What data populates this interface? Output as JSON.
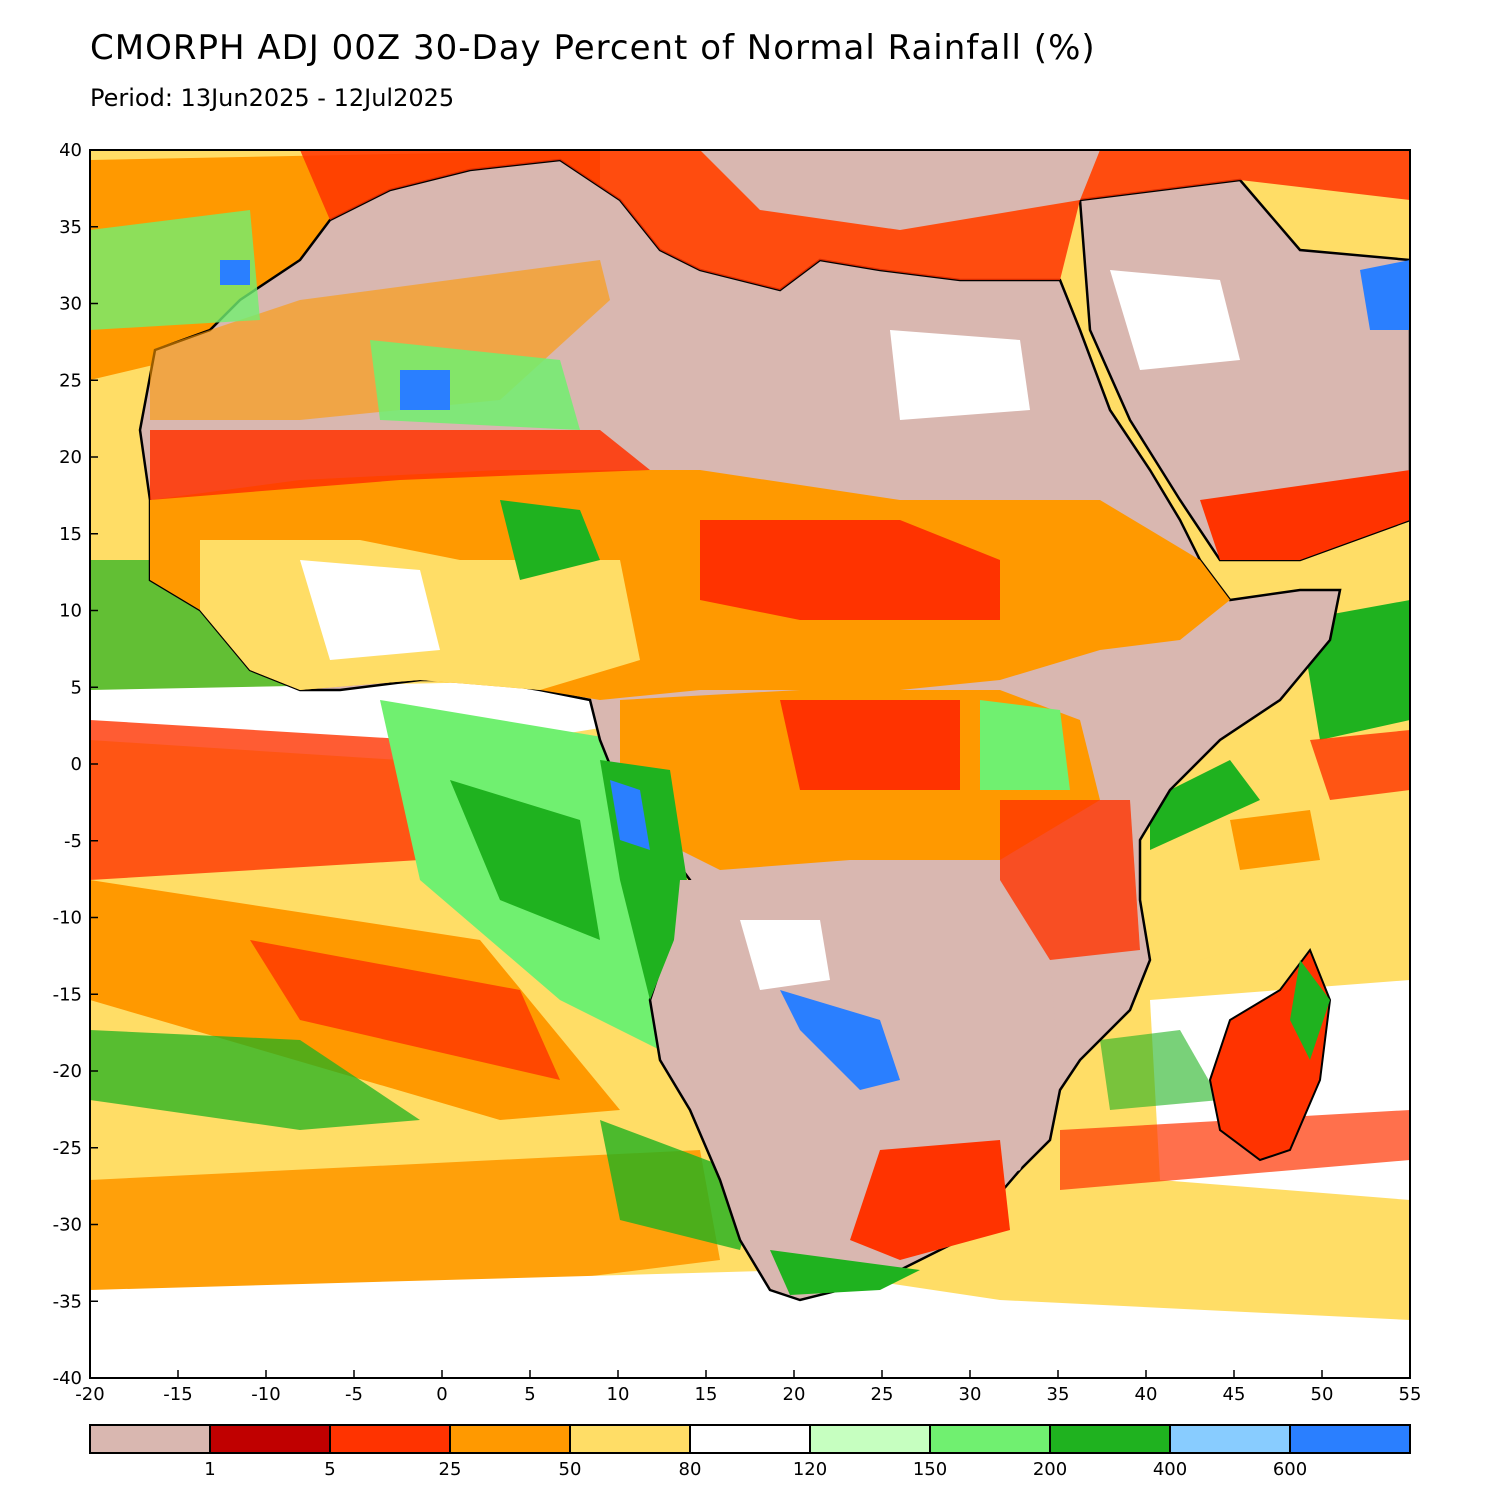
{
  "header": {
    "title": "CMORPH ADJ 00Z 30-Day Percent of Normal Rainfall (%)",
    "period": "Period: 13Jun2025 - 12Jul2025"
  },
  "map": {
    "region": "Africa",
    "lon_range": [
      -20,
      55
    ],
    "lat_range": [
      -40,
      40
    ],
    "x_ticks": [
      "-20",
      "-15",
      "-10",
      "-5",
      "0",
      "5",
      "10",
      "15",
      "20",
      "25",
      "30",
      "35",
      "40",
      "45",
      "50",
      "55"
    ],
    "y_ticks": [
      "40",
      "35",
      "30",
      "25",
      "20",
      "15",
      "10",
      "5",
      "0",
      "-5",
      "-10",
      "-15",
      "-20",
      "-25",
      "-30",
      "-35",
      "-40"
    ]
  },
  "legend": {
    "colors": [
      "#d9b7b0",
      "#c00000",
      "#ff3300",
      "#ff9900",
      "#ffdd66",
      "#ffffff",
      "#c6ffc0",
      "#70f070",
      "#1fb21f",
      "#88ccff",
      "#2a7fff"
    ],
    "labels": [
      "1",
      "5",
      "25",
      "50",
      "80",
      "120",
      "150",
      "200",
      "400",
      "600"
    ]
  }
}
